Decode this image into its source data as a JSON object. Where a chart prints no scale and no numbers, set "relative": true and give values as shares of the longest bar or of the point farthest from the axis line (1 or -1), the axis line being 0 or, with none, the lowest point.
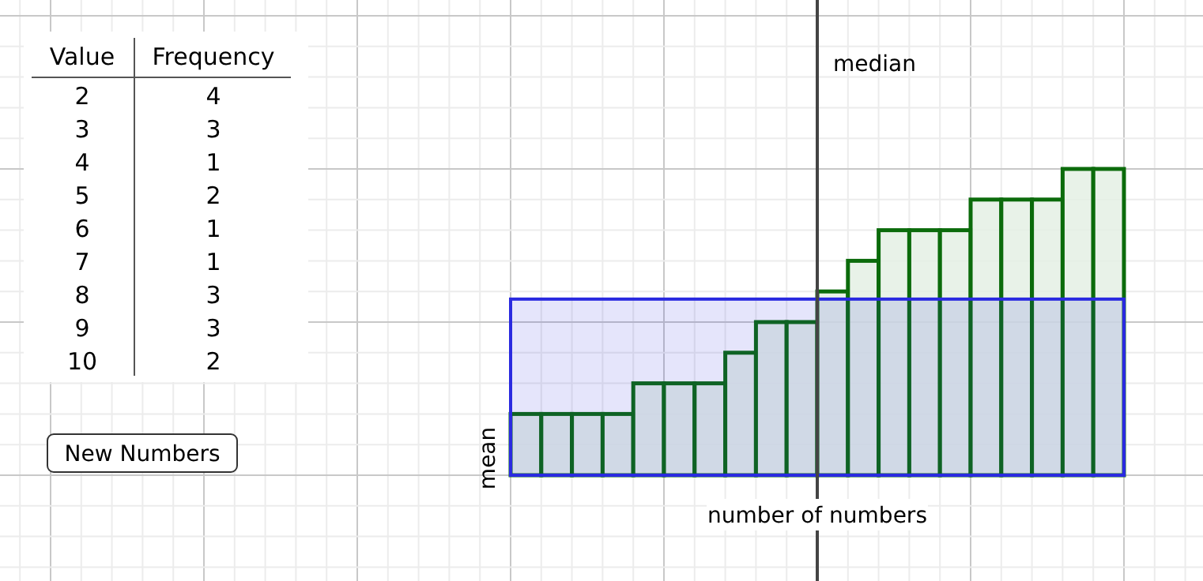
{
  "chart_data": [
    {
      "type": "bar",
      "relative": true,
      "categories": [
        null,
        null,
        null,
        null,
        null,
        null,
        null,
        null,
        null,
        null,
        null,
        null,
        null,
        null,
        null,
        null,
        null,
        null,
        null,
        null
      ],
      "values": [
        0.2,
        0.2,
        0.2,
        0.2,
        0.3,
        0.3,
        0.3,
        0.4,
        0.5,
        0.5,
        0.6,
        0.7,
        0.8,
        0.8,
        0.8,
        0.9,
        0.9,
        0.9,
        1,
        1
      ],
      "color": "#e4f0e4",
      "xlabel": "number of numbers",
      "grid": true,
      "bands": [
        {
          "axis": "y",
          "from": 0,
          "to": 0.575,
          "label": "mean",
          "color": "#2a2ae0"
        }
      ],
      "annotations": [
        "median"
      ]
    },
    {
      "type": "heatmap",
      "ylabel": "Value",
      "categories": [
        "Frequency"
      ],
      "y_categories": [
        "2",
        "3",
        "4",
        "5",
        "6",
        "7",
        "8",
        "9",
        "10"
      ],
      "cells": [
        [
          4
        ],
        [
          3
        ],
        [
          1
        ],
        [
          2
        ],
        [
          1
        ],
        [
          1
        ],
        [
          3
        ],
        [
          3
        ],
        [
          2
        ]
      ],
      "data_labels": true,
      "annotations": [
        "New Numbers"
      ]
    }
  ]
}
